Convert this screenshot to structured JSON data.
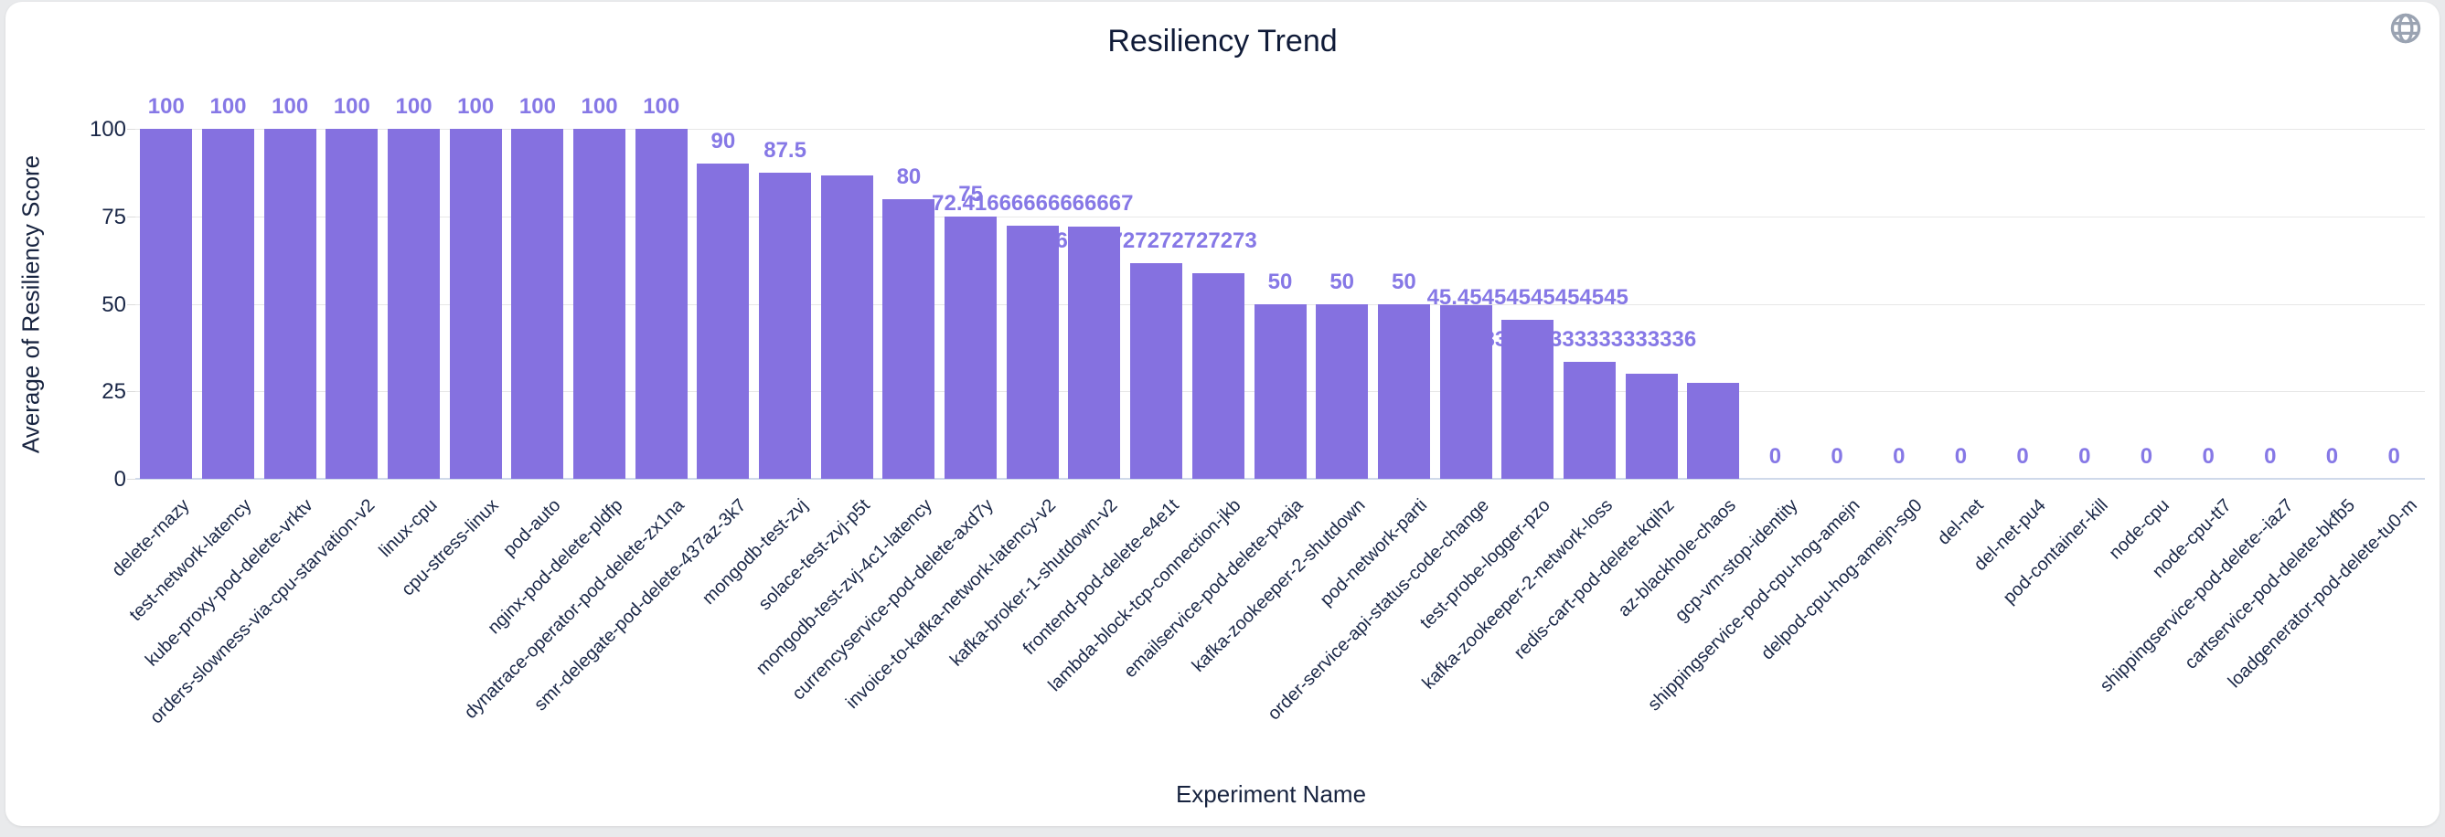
{
  "header": {
    "title": "Resiliency Trend",
    "globe_icon": "globe-icon",
    "globe_color": "#9aa3b2"
  },
  "chart_data": {
    "type": "bar",
    "title": "Resiliency Trend",
    "xlabel": "Experiment Name",
    "ylabel": "Average of Resiliency Score",
    "ylim": [
      0,
      100
    ],
    "y_ticks": [
      0,
      25,
      50,
      75,
      100
    ],
    "grid": true,
    "legend": "none",
    "bar_color": "#8571E0",
    "value_label_color": "#8678E6",
    "axis_text_color": "#1a2747",
    "bars": [
      {
        "name": "delete-rnazy",
        "value": 100,
        "label": "100"
      },
      {
        "name": "test-network-latency",
        "value": 100,
        "label": "100"
      },
      {
        "name": "kube-proxy-pod-delete-vrktv",
        "value": 100,
        "label": "100"
      },
      {
        "name": "orders-slowness-via-cpu-starvation-v2",
        "value": 100,
        "label": "100"
      },
      {
        "name": "linux-cpu",
        "value": 100,
        "label": "100"
      },
      {
        "name": "cpu-stress-linux",
        "value": 100,
        "label": "100"
      },
      {
        "name": "pod-auto",
        "value": 100,
        "label": "100"
      },
      {
        "name": "nginx-pod-delete-pldfp",
        "value": 100,
        "label": "100"
      },
      {
        "name": "dynatrace-operator-pod-delete-zx1na",
        "value": 100,
        "label": "100"
      },
      {
        "name": "smr-delegate-pod-delete-437az-3k7",
        "value": 90,
        "label": "90"
      },
      {
        "name": "mongodb-test-zvj",
        "value": 87.5,
        "label": "87.5"
      },
      {
        "name": "solace-test-zvj-p5t",
        "value": 86.7,
        "label": null
      },
      {
        "name": "mongodb-test-zvj-4c1-latency",
        "value": 80,
        "label": "80"
      },
      {
        "name": "currencyservice-pod-delete-axd7y",
        "value": 75,
        "label": "75"
      },
      {
        "name": "invoice-to-kafka-network-latency-v2",
        "value": 72.41666666666667,
        "label": "72.41666666666667"
      },
      {
        "name": "kafka-broker-1-shutdown-v2",
        "value": 72,
        "label": null
      },
      {
        "name": "frontend-pod-delete-e4e1t",
        "value": 61.72727272727273,
        "label": "61.72727272727273"
      },
      {
        "name": "lambda-block-tcp-connection-jkb",
        "value": 58.8,
        "label": null
      },
      {
        "name": "emailservice-pod-delete-pxaja",
        "value": 50,
        "label": "50"
      },
      {
        "name": "kafka-zookeeper-2-shutdown",
        "value": 50,
        "label": "50"
      },
      {
        "name": "pod-network-parti",
        "value": 50,
        "label": "50"
      },
      {
        "name": "order-service-api-status-code-change",
        "value": 49.6,
        "label": null
      },
      {
        "name": "test-probe-logger-pzo",
        "value": 45.45454545454545,
        "label": "45.45454545454545"
      },
      {
        "name": "kafka-zookeeper-2-network-loss",
        "value": 33.333333333333336,
        "label": "33.333333333333336"
      },
      {
        "name": "redis-cart-pod-delete-kqihz",
        "value": 30,
        "label": null
      },
      {
        "name": "az-blackhole-chaos",
        "value": 27.5,
        "label": null
      },
      {
        "name": "gcp-vm-stop-identity",
        "value": 0,
        "label": "0"
      },
      {
        "name": "shippingservice-pod-cpu-hog-amejn",
        "value": 0,
        "label": "0"
      },
      {
        "name": "delpod-cpu-hog-amejn-sg0",
        "value": 0,
        "label": "0"
      },
      {
        "name": "del-net",
        "value": 0,
        "label": "0"
      },
      {
        "name": "del-net-pu4",
        "value": 0,
        "label": "0"
      },
      {
        "name": "pod-container-kill",
        "value": 0,
        "label": "0"
      },
      {
        "name": "node-cpu",
        "value": 0,
        "label": "0"
      },
      {
        "name": "node-cpu-tt7",
        "value": 0,
        "label": "0"
      },
      {
        "name": "shippingservice-pod-delete--iaz7",
        "value": 0,
        "label": "0"
      },
      {
        "name": "cartservice-pod-delete-bkfb5",
        "value": 0,
        "label": "0"
      },
      {
        "name": "loadgenerator-pod-delete-tu0-m",
        "value": 0,
        "label": "0"
      }
    ]
  }
}
